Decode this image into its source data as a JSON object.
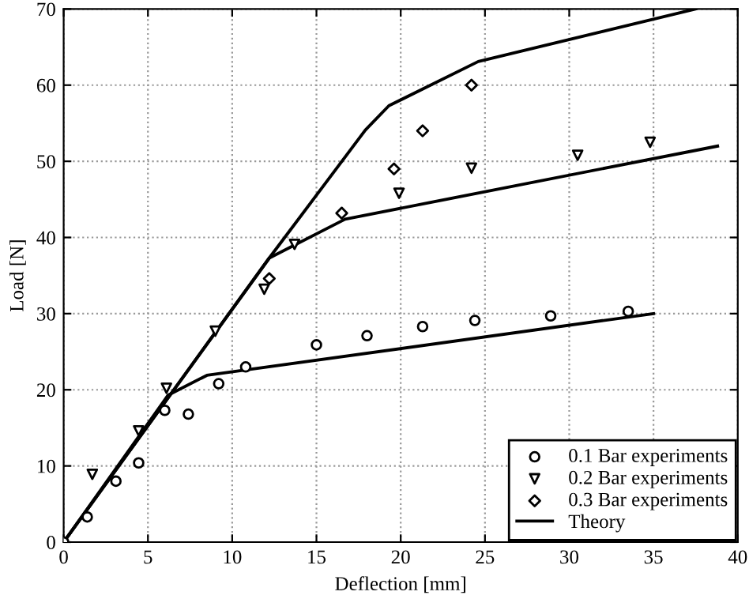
{
  "chart_data": {
    "type": "scatter",
    "xlabel": "Deflection [mm]",
    "ylabel": "Load [N]",
    "xlim": [
      0,
      40
    ],
    "ylim": [
      0,
      70
    ],
    "xticks": [
      0,
      5,
      10,
      15,
      20,
      25,
      30,
      35,
      40
    ],
    "yticks": [
      0,
      10,
      20,
      30,
      40,
      50,
      60,
      70
    ],
    "grid": true,
    "legend": "bottom right",
    "series": [
      {
        "name": "0.1 Bar experiments",
        "marker": "circle",
        "color": "#000000",
        "x": [
          0,
          1.4,
          3.1,
          4.45,
          6.0,
          7.4,
          9.2,
          10.8,
          15.0,
          18.0,
          21.3,
          24.4,
          28.9,
          33.5
        ],
        "values": [
          0,
          3.3,
          8.0,
          10.4,
          17.3,
          16.8,
          20.8,
          23.0,
          25.9,
          27.1,
          28.3,
          29.1,
          29.7,
          30.3
        ]
      },
      {
        "name": "0.2 Bar experiments",
        "marker": "triangle",
        "color": "#000000",
        "x": [
          1.7,
          4.45,
          6.1,
          9.0,
          11.9,
          13.7,
          19.9,
          24.2,
          30.5,
          34.8
        ],
        "values": [
          8.9,
          14.6,
          20.2,
          27.7,
          33.2,
          39.1,
          45.8,
          49.1,
          50.8,
          52.5
        ]
      },
      {
        "name": "0.3 Bar experiments",
        "marker": "diamond",
        "color": "#000000",
        "x": [
          12.2,
          16.5,
          19.6,
          21.3,
          24.2
        ],
        "values": [
          34.6,
          43.2,
          49.0,
          54.0,
          60.0
        ]
      },
      {
        "name": "Theory",
        "type": "line",
        "marker": "none",
        "line_style": "solid",
        "color": "#000000",
        "x": [
          0,
          6.2,
          8.5,
          35
        ],
        "values": [
          0,
          19.3,
          21.9,
          30
        ]
      },
      {
        "type": "line",
        "marker": "none",
        "line_style": "solid",
        "color": "#000000",
        "x": [
          0,
          12.2,
          16.7,
          38.8
        ],
        "values": [
          0,
          37.3,
          42.4,
          52
        ]
      },
      {
        "type": "line",
        "marker": "none",
        "line_style": "solid",
        "color": "#000000",
        "x": [
          0,
          12.2,
          17.9,
          19.3,
          24.6,
          37.5
        ],
        "values": [
          0,
          37.3,
          54.1,
          57.3,
          63.1,
          70
        ]
      }
    ]
  }
}
